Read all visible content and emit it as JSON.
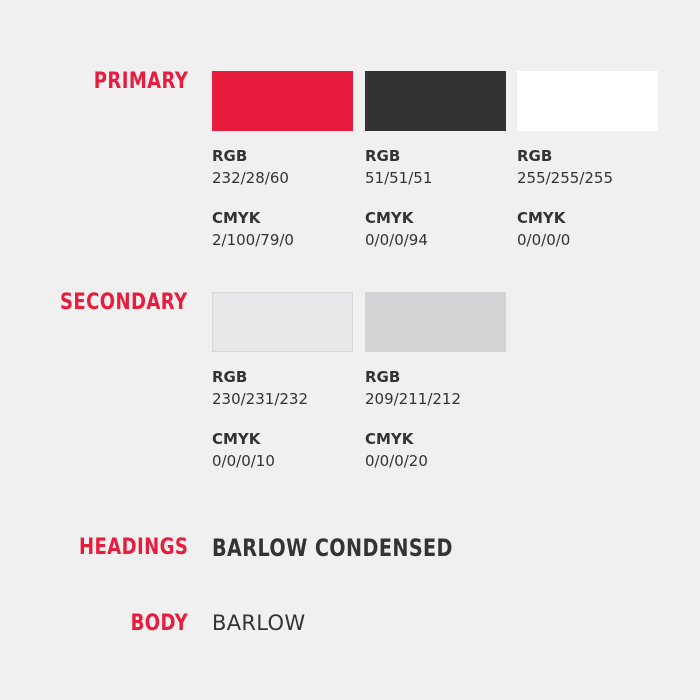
{
  "primary": {
    "label": "PRIMARY",
    "swatches": [
      {
        "color": "#e81c3c",
        "rgb_label": "RGB",
        "rgb": "232/28/60",
        "cmyk_label": "CMYK",
        "cmyk": "2/100/79/0"
      },
      {
        "color": "#333333",
        "rgb_label": "RGB",
        "rgb": "51/51/51",
        "cmyk_label": "CMYK",
        "cmyk": "0/0/0/94"
      },
      {
        "color": "#ffffff",
        "rgb_label": "RGB",
        "rgb": "255/255/255",
        "cmyk_label": "CMYK",
        "cmyk": "0/0/0/0"
      }
    ]
  },
  "secondary": {
    "label": "SECONDARY",
    "swatches": [
      {
        "color": "#e6e7e8",
        "rgb_label": "RGB",
        "rgb": "230/231/232",
        "cmyk_label": "CMYK",
        "cmyk": "0/0/0/10"
      },
      {
        "color": "#d1d3d4",
        "rgb_label": "RGB",
        "rgb": "209/211/212",
        "cmyk_label": "CMYK",
        "cmyk": "0/0/0/20"
      }
    ]
  },
  "typography": {
    "headings_label": "HEADINGS",
    "headings_font": "BARLOW CONDENSED",
    "body_label": "BODY",
    "body_font": "BARLOW"
  },
  "colors": {
    "accent": "#e81c3c",
    "text": "#333333",
    "background": "#f0f0f0"
  }
}
